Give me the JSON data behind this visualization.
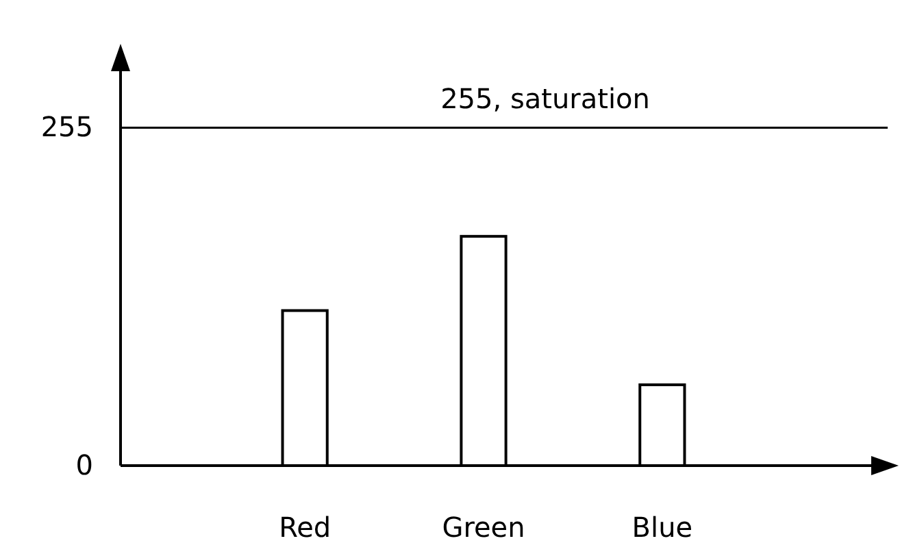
{
  "chart_data": {
    "type": "bar",
    "categories": [
      "Red",
      "Green",
      "Blue"
    ],
    "values": [
      117,
      173,
      61
    ],
    "color": "#ffffff",
    "ylim": [
      0,
      310
    ],
    "yticks": [
      0,
      255
    ],
    "ref_lines": [
      {
        "axis": "y",
        "value": 255,
        "label": "255, saturation",
        "color": "#000000"
      }
    ]
  }
}
